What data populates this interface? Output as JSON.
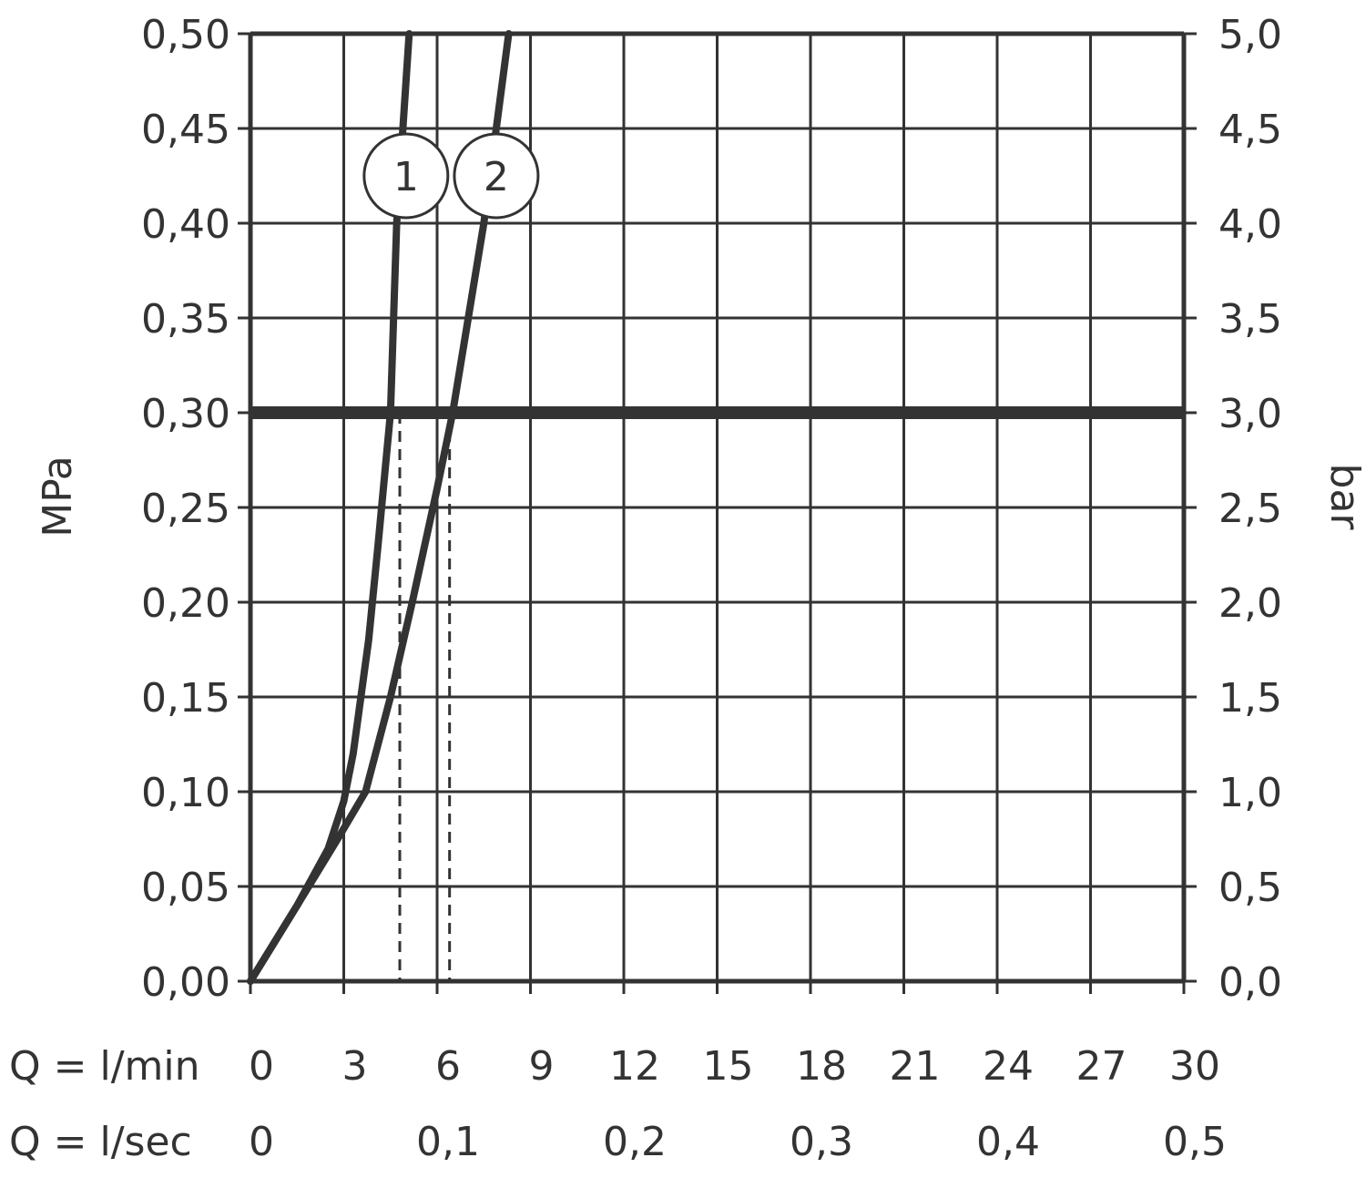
{
  "chart_data": {
    "type": "line",
    "y_left_label": "MPa",
    "y_right_label": "bar",
    "y_left_ticks": [
      "0,00",
      "0,05",
      "0,10",
      "0,15",
      "0,20",
      "0,25",
      "0,30",
      "0,35",
      "0,40",
      "0,45",
      "0,50"
    ],
    "y_right_ticks": [
      "0,0",
      "0,5",
      "1,0",
      "1,5",
      "2,0",
      "2,5",
      "3,0",
      "3,5",
      "4,0",
      "4,5",
      "5,0"
    ],
    "x_row1_label": "Q = l/min",
    "x_row1_ticks": [
      "0",
      "3",
      "6",
      "9",
      "12",
      "15",
      "18",
      "21",
      "24",
      "27",
      "30"
    ],
    "x_row2_label": "Q = l/sec",
    "x_row2_ticks": [
      "0",
      "0,1",
      "0,2",
      "0,3",
      "0,4",
      "0,5"
    ],
    "x_range_lmin": [
      0,
      30
    ],
    "y_range_mpa": [
      0,
      0.5
    ],
    "grid": true,
    "reference_line_mpa": 0.3,
    "series": [
      {
        "name": "1",
        "color": "#333333",
        "x_lmin": [
          0,
          1.5,
          2.5,
          3.0,
          3.3,
          3.8,
          4.1,
          4.5,
          4.7,
          4.9,
          5.1
        ],
        "y_mpa": [
          0.0,
          0.04,
          0.07,
          0.095,
          0.12,
          0.18,
          0.23,
          0.3,
          0.4,
          0.45,
          0.5
        ],
        "marker_label": "1",
        "marker_at": [
          5.0,
          0.425
        ],
        "dropdown_x_lmin": 4.8
      },
      {
        "name": "2",
        "color": "#333333",
        "x_lmin": [
          0,
          1.5,
          2.8,
          3.7,
          4.5,
          5.2,
          6.0,
          6.5,
          7.5,
          8.3
        ],
        "y_mpa": [
          0.0,
          0.04,
          0.075,
          0.1,
          0.15,
          0.2,
          0.26,
          0.3,
          0.4,
          0.5
        ],
        "marker_label": "2",
        "marker_at": [
          7.9,
          0.425
        ],
        "dropdown_x_lmin": 6.4
      }
    ]
  }
}
